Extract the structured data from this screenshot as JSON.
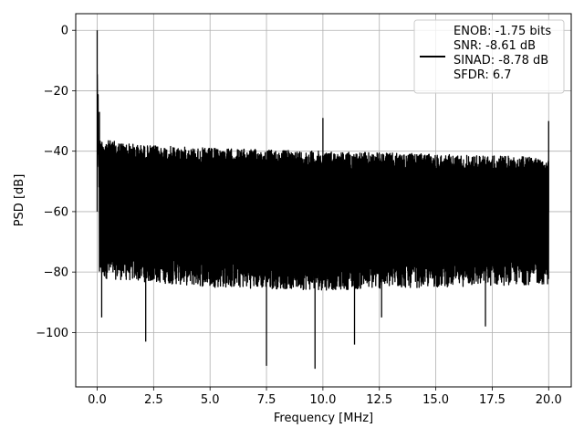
{
  "chart_data": {
    "type": "line",
    "xlabel": "Frequency [MHz]",
    "ylabel": "PSD [dB]",
    "xlim": [
      -0.95,
      21.0
    ],
    "ylim": [
      -118,
      5.5
    ],
    "xticks": [
      0.0,
      2.5,
      5.0,
      7.5,
      10.0,
      12.5,
      15.0,
      17.5,
      20.0
    ],
    "xtick_labels": [
      "0.0",
      "2.5",
      "5.0",
      "7.5",
      "10.0",
      "12.5",
      "15.0",
      "17.5",
      "20.0"
    ],
    "yticks": [
      0,
      -20,
      -40,
      -60,
      -80,
      -100
    ],
    "ytick_labels": [
      "0",
      "−20",
      "−40",
      "−60",
      "−80",
      "−100"
    ],
    "grid": true,
    "legend_position": "top-right",
    "series": [
      {
        "name": "ENOB: -1.75 bits\nSNR: -8.61 dB\nSINAD: -8.78 dB\nSFDR: 6.7",
        "legend_lines": [
          "ENOB: -1.75 bits",
          "SNR: -8.61 dB",
          "SINAD: -8.78 dB",
          "SFDR: 6.7"
        ],
        "color": "#000000",
        "x_range": [
          0.0,
          20.0
        ],
        "noise_floor_upper_db": [
          [
            0.1,
            -36
          ],
          [
            2.0,
            -38
          ],
          [
            5.0,
            -39
          ],
          [
            10.0,
            -40
          ],
          [
            15.0,
            -41
          ],
          [
            20.0,
            -42
          ]
        ],
        "noise_floor_lower_db": [
          [
            0.1,
            -82
          ],
          [
            5.0,
            -85
          ],
          [
            10.0,
            -86
          ],
          [
            15.0,
            -85
          ],
          [
            20.0,
            -84
          ]
        ],
        "peaks": [
          {
            "x": 0.0,
            "y": 0
          },
          {
            "x": 0.1,
            "y": -27
          },
          {
            "x": 10.0,
            "y": -29
          },
          {
            "x": 20.0,
            "y": -30
          }
        ],
        "deep_dips": [
          {
            "x": 0.2,
            "y": -95
          },
          {
            "x": 2.15,
            "y": -103
          },
          {
            "x": 7.5,
            "y": -111
          },
          {
            "x": 9.65,
            "y": -112
          },
          {
            "x": 11.4,
            "y": -104
          },
          {
            "x": 12.6,
            "y": -95
          },
          {
            "x": 17.2,
            "y": -98
          }
        ]
      }
    ]
  }
}
